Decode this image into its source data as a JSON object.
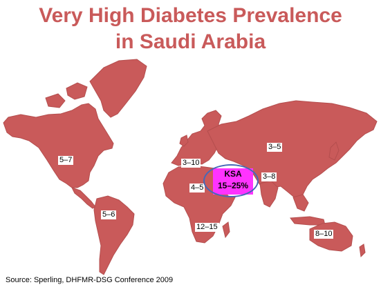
{
  "title": {
    "line1": "Very High Diabetes Prevalence",
    "line2": "in Saudi Arabia"
  },
  "colors": {
    "land": "#c95a5a",
    "land_stroke": "#b44e4e",
    "title": "#c95a5a",
    "ksa_highlight": "#ff33ff",
    "ksa_ring": "#4668b8"
  },
  "regions": [
    {
      "id": "north-america",
      "value": "5–7"
    },
    {
      "id": "south-america",
      "value": "5–6"
    },
    {
      "id": "europe",
      "value": "3–10"
    },
    {
      "id": "north-africa",
      "value": "4–5"
    },
    {
      "id": "sub-saharan-africa",
      "value": "12–15"
    },
    {
      "id": "asia",
      "value": "3–5"
    },
    {
      "id": "south-asia",
      "value": "3–8"
    },
    {
      "id": "australia",
      "value": "8–10"
    }
  ],
  "ksa": {
    "name": "KSA",
    "value": "15–25%"
  },
  "source": "Source:  Sperling, DHFMR-DSG Conference 2009"
}
